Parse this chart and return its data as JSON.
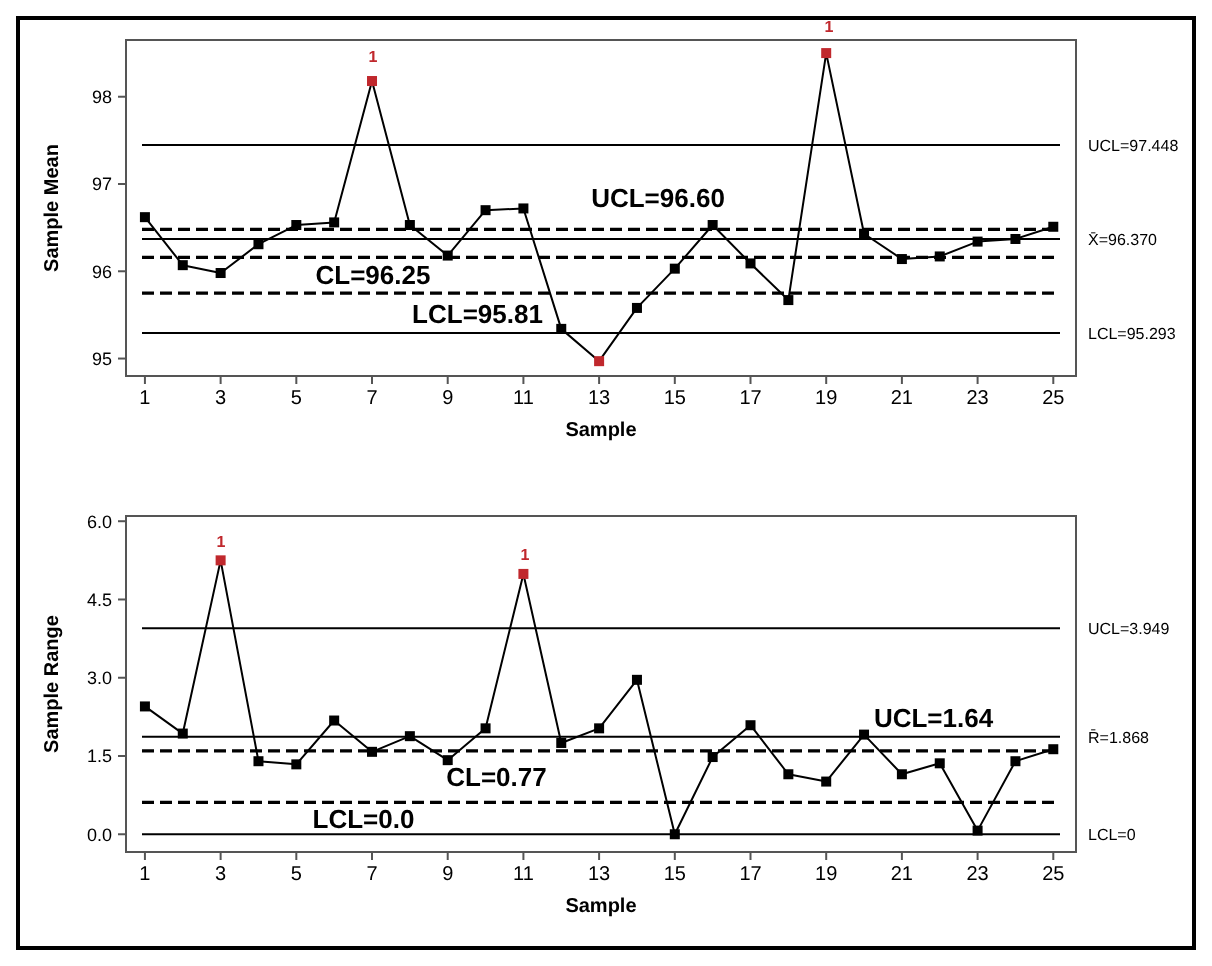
{
  "chart_data": [
    {
      "type": "line",
      "ylabel": "Sample Mean",
      "xlabel": "Sample",
      "x": [
        1,
        2,
        3,
        4,
        5,
        6,
        7,
        8,
        9,
        10,
        11,
        12,
        13,
        14,
        15,
        16,
        17,
        18,
        19,
        20,
        21,
        22,
        23,
        24,
        25
      ],
      "series": [
        {
          "color": "#000000",
          "colors": [
            "#000000",
            "#000000",
            "#000000",
            "#000000",
            "#000000",
            "#000000",
            "#c0282d",
            "#000000",
            "#000000",
            "#000000",
            "#000000",
            "#000000",
            "#c0282d",
            "#000000",
            "#000000",
            "#000000",
            "#000000",
            "#000000",
            "#c0282d",
            "#000000",
            "#000000",
            "#000000",
            "#000000",
            "#000000",
            "#000000"
          ],
          "values": [
            96.62,
            96.07,
            95.98,
            96.31,
            96.53,
            96.56,
            98.18,
            96.53,
            96.18,
            96.7,
            96.72,
            95.34,
            94.97,
            95.58,
            96.03,
            96.53,
            96.09,
            95.67,
            98.5,
            96.43,
            96.14,
            96.17,
            96.34,
            96.37,
            96.51
          ]
        }
      ],
      "xlim": [
        0.5,
        25.6
      ],
      "xticks": [
        1,
        3,
        5,
        7,
        9,
        11,
        13,
        15,
        17,
        19,
        21,
        23,
        25
      ],
      "ylim": [
        94.8,
        98.65
      ],
      "yticks": [
        95,
        96,
        97,
        98
      ],
      "grid": false,
      "marker": "square",
      "ref_lines": [
        {
          "axis": "y",
          "value": 97.448,
          "label": "UCL=97.448",
          "line_style": "solid"
        },
        {
          "axis": "y",
          "value": 96.37,
          "label": "X̄=96.370",
          "line_style": "solid"
        },
        {
          "axis": "y",
          "value": 95.293,
          "label": "LCL=95.293",
          "line_style": "solid"
        },
        {
          "axis": "y",
          "value": 96.48,
          "line_style": "dashed"
        },
        {
          "axis": "y",
          "value": 96.16,
          "line_style": "dashed"
        },
        {
          "axis": "y",
          "value": 95.75,
          "line_style": "dashed"
        }
      ],
      "annotations": [
        "UCL=96.60",
        "CL=96.25",
        "LCL=95.81",
        "1",
        "1"
      ]
    },
    {
      "type": "line",
      "ylabel": "Sample Range",
      "xlabel": "Sample",
      "x": [
        1,
        2,
        3,
        4,
        5,
        6,
        7,
        8,
        9,
        10,
        11,
        12,
        13,
        14,
        15,
        16,
        17,
        18,
        19,
        20,
        21,
        22,
        23,
        24,
        25
      ],
      "series": [
        {
          "color": "#000000",
          "colors": [
            "#000000",
            "#000000",
            "#c0282d",
            "#000000",
            "#000000",
            "#000000",
            "#000000",
            "#000000",
            "#000000",
            "#000000",
            "#c0282d",
            "#000000",
            "#000000",
            "#000000",
            "#000000",
            "#000000",
            "#000000",
            "#000000",
            "#000000",
            "#000000",
            "#000000",
            "#000000",
            "#000000",
            "#000000",
            "#000000"
          ],
          "values": [
            2.45,
            1.93,
            5.25,
            1.4,
            1.34,
            2.18,
            1.58,
            1.88,
            1.42,
            2.03,
            4.99,
            1.75,
            2.03,
            2.96,
            0,
            1.48,
            2.09,
            1.15,
            1.01,
            1.91,
            1.15,
            1.36,
            0.07,
            1.4,
            1.63
          ]
        }
      ],
      "xlim": [
        0.5,
        25.6
      ],
      "xticks": [
        1,
        3,
        5,
        7,
        9,
        11,
        13,
        15,
        17,
        19,
        21,
        23,
        25
      ],
      "ylim": [
        -0.34,
        6.1
      ],
      "yticks": [
        {
          "value": 0,
          "label": "0.0"
        },
        1.5,
        {
          "value": 3,
          "label": "3.0"
        },
        4.5,
        {
          "value": 6,
          "label": "6.0"
        }
      ],
      "grid": false,
      "marker": "square",
      "ref_lines": [
        {
          "axis": "y",
          "value": 3.949,
          "label": "UCL=3.949",
          "line_style": "solid"
        },
        {
          "axis": "y",
          "value": 1.868,
          "label": "R̄=1.868",
          "line_style": "solid"
        },
        {
          "axis": "y",
          "value": 0,
          "label": "LCL=0",
          "line_style": "solid"
        },
        {
          "axis": "y",
          "value": 1.6,
          "line_style": "dashed"
        },
        {
          "axis": "y",
          "value": 0.61,
          "line_style": "dashed"
        }
      ],
      "annotations": [
        "UCL=1.64",
        "CL=0.77",
        "LCL=0.0",
        "1",
        "1"
      ]
    }
  ]
}
